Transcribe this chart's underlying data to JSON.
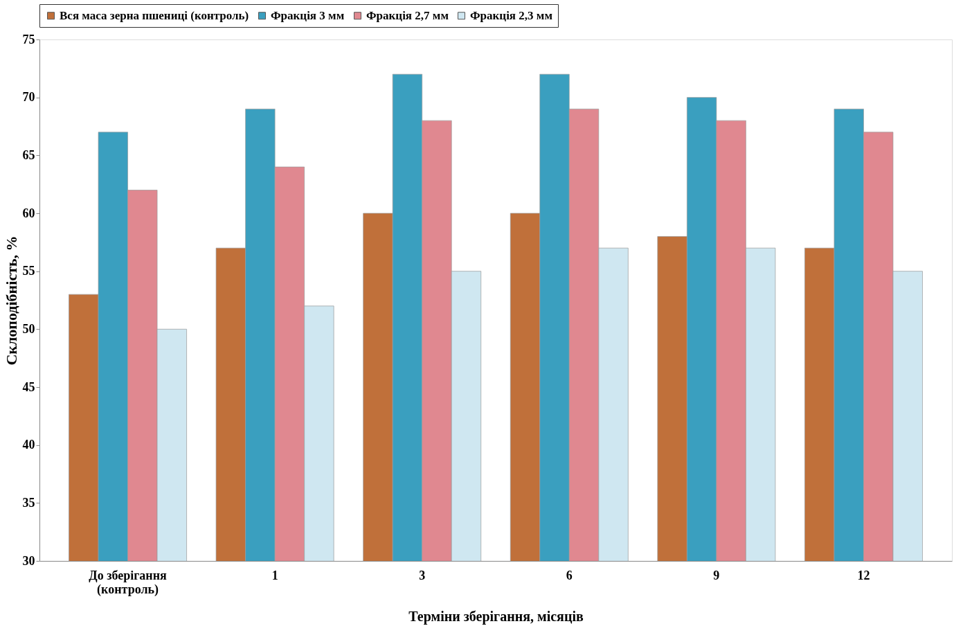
{
  "chart_data": {
    "type": "bar",
    "xlabel": "Терміни зберігання, місяців",
    "ylabel": "Склоподібність, %",
    "categories": [
      "До зберігання\n(контроль)",
      "1",
      "3",
      "6",
      "9",
      "12"
    ],
    "series": [
      {
        "name": "Вся маса зерна пшениці (контроль)",
        "color": "#c0703a",
        "values": [
          53,
          57,
          60,
          60,
          58,
          57
        ]
      },
      {
        "name": "Фракція 3 мм",
        "color": "#3a9fbf",
        "values": [
          67,
          69,
          72,
          72,
          70,
          69
        ]
      },
      {
        "name": "Фракція 2,7 мм",
        "color": "#e08890",
        "values": [
          62,
          64,
          68,
          69,
          68,
          67
        ]
      },
      {
        "name": "Фракція 2,3 мм",
        "color": "#cfe7f1",
        "values": [
          50,
          52,
          55,
          57,
          57,
          55
        ]
      }
    ],
    "ylim": [
      30,
      75
    ],
    "yticks": [
      30,
      35,
      40,
      45,
      50,
      55,
      60,
      65,
      70,
      75
    ],
    "grid": false,
    "legend": "top"
  }
}
